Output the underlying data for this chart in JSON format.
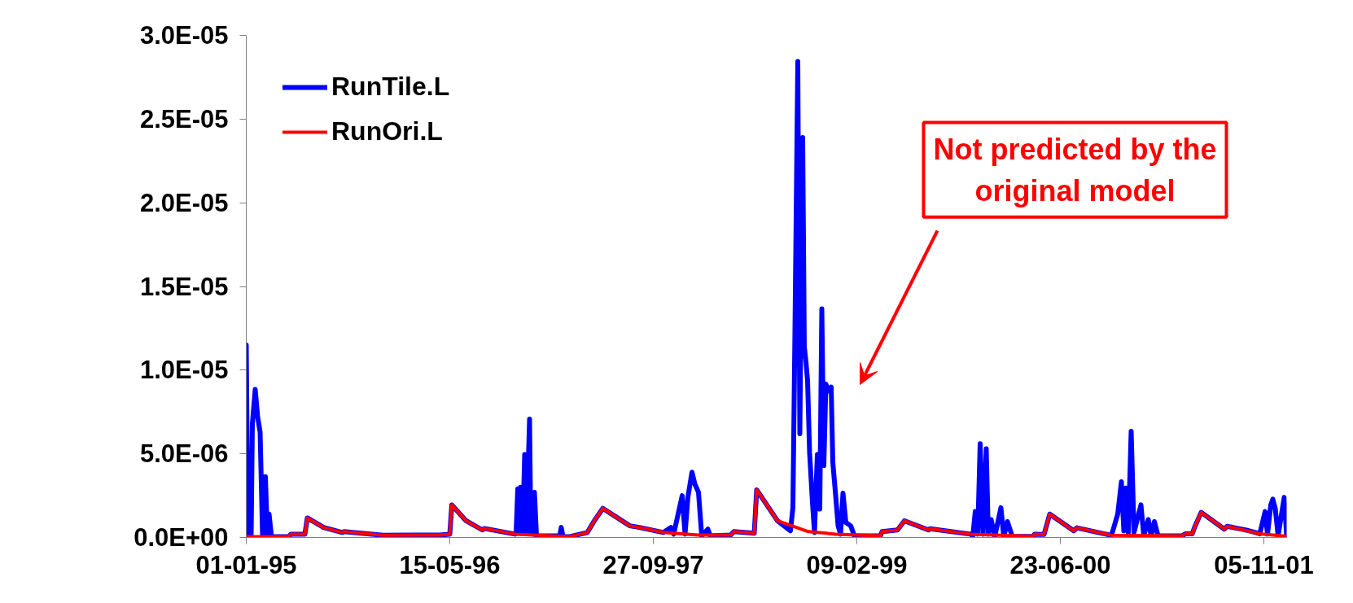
{
  "chart_data": {
    "type": "line",
    "xlim": [
      "1995-01-01",
      "2001-12-31"
    ],
    "xticks": [
      {
        "value": "1995-01-01",
        "label": "01-01-95"
      },
      {
        "value": "1996-05-15",
        "label": "15-05-96"
      },
      {
        "value": "1997-09-27",
        "label": "27-09-97"
      },
      {
        "value": "1999-02-09",
        "label": "09-02-99"
      },
      {
        "value": "2000-06-23",
        "label": "23-06-00"
      },
      {
        "value": "2001-11-05",
        "label": "05-11-01"
      }
    ],
    "ylim": [
      0,
      3e-05
    ],
    "yticks": [
      {
        "value": 0,
        "label": "0.0E+00"
      },
      {
        "value": 5e-06,
        "label": "5.0E-06"
      },
      {
        "value": 1e-05,
        "label": "1.0E-05"
      },
      {
        "value": 1.5e-05,
        "label": "1.5E-05"
      },
      {
        "value": 2e-05,
        "label": "2.0E-05"
      },
      {
        "value": 2.5e-05,
        "label": "2.5E-05"
      },
      {
        "value": 3e-05,
        "label": "3.0E-05"
      }
    ],
    "grid": false,
    "legend": "top left",
    "marker": "none",
    "line_style": "solid",
    "annotations": [
      "Not predicted by the original model"
    ],
    "series": [
      {
        "name": "RunTile.L",
        "color": "#0000ff",
        "x": [
          "1995-01-01",
          "1995-01-05",
          "1995-01-09",
          "1995-01-13",
          "1995-01-16",
          "1995-01-23",
          "1995-01-29",
          "1995-02-04",
          "1995-02-10",
          "1995-02-17",
          "1995-02-22",
          "1995-02-26",
          "1995-03-04",
          "1995-04-15",
          "1995-04-21",
          "1995-05-25",
          "1995-05-31",
          "1995-07-10",
          "1995-08-25",
          "1995-08-29",
          "1995-12-03",
          "1996-04-20",
          "1996-05-15",
          "1996-05-20",
          "1996-06-24",
          "1996-08-03",
          "1996-08-08",
          "1996-10-22",
          "1996-10-25",
          "1996-10-29",
          "1996-11-02",
          "1996-11-05",
          "1996-11-10",
          "1996-11-15",
          "1996-11-19",
          "1996-11-27",
          "1996-11-30",
          "1996-12-02",
          "1996-12-06",
          "1996-12-09",
          "1996-12-14",
          "1997-02-09",
          "1997-02-13",
          "1997-02-17",
          "1997-03-06",
          "1997-04-18",
          "1997-05-05",
          "1997-05-26",
          "1997-07-31",
          "1997-08-24",
          "1997-10-22",
          "1997-11-09",
          "1997-11-16",
          "1997-12-07",
          "1997-12-14",
          "1997-12-21",
          "1997-12-31",
          "1998-01-07",
          "1998-01-16",
          "1998-01-24",
          "1998-02-08",
          "1998-02-14",
          "1998-04-05",
          "1998-04-13",
          "1998-06-02",
          "1998-06-08",
          "1998-07-29",
          "1998-08-30",
          "1998-09-05",
          "1998-09-10",
          "1998-09-17",
          "1998-09-22",
          "1998-09-29",
          "1998-10-03",
          "1998-10-07",
          "1998-10-11",
          "1998-10-16",
          "1998-10-23",
          "1998-10-28",
          "1998-11-04",
          "1998-11-10",
          "1998-11-15",
          "1998-11-20",
          "1998-11-25",
          "1998-12-01",
          "1998-12-08",
          "1998-12-12",
          "1998-12-19",
          "1998-12-25",
          "1998-12-31",
          "1999-01-06",
          "1999-01-13",
          "1999-01-25",
          "1999-02-03",
          "1999-04-08",
          "1999-04-12",
          "1999-05-20",
          "1999-06-06",
          "1999-08-04",
          "1999-08-08",
          "1999-11-15",
          "1999-11-21",
          "1999-11-27",
          "1999-12-03",
          "1999-12-09",
          "1999-12-16",
          "1999-12-24",
          "1999-12-29",
          "2000-01-05",
          "2000-01-14",
          "2000-01-29",
          "2000-02-05",
          "2000-02-14",
          "2000-02-26",
          "2000-04-17",
          "2000-04-21",
          "2000-05-14",
          "2000-05-28",
          "2000-07-26",
          "2000-08-03",
          "2000-10-26",
          "2000-10-30",
          "2000-11-11",
          "2000-11-20",
          "2000-11-26",
          "2000-12-01",
          "2000-12-07",
          "2000-12-14",
          "2000-12-21",
          "2001-01-07",
          "2001-01-14",
          "2001-01-25",
          "2001-02-01",
          "2001-02-09",
          "2001-02-18",
          "2001-04-18",
          "2001-04-27",
          "2001-05-13",
          "2001-05-19",
          "2001-06-04",
          "2001-07-31",
          "2001-08-07",
          "2001-09-23",
          "2001-10-26",
          "2001-11-08",
          "2001-11-14",
          "2001-11-22",
          "2001-11-27",
          "2001-12-03",
          "2001-12-10",
          "2001-12-25",
          "2001-12-31"
        ],
        "values": [
          1.15e-05,
          1e-07,
          4.45e-06,
          1e-07,
          6.8e-06,
          8.85e-06,
          7.2e-06,
          6.3e-06,
          1e-07,
          3.63e-06,
          1e-07,
          1.4e-06,
          5e-08,
          5e-08,
          2e-07,
          2e-07,
          1.17e-06,
          6e-07,
          3e-07,
          3.5e-07,
          1.3e-07,
          1.5e-07,
          2e-07,
          1.94e-06,
          1e-06,
          4.5e-07,
          5.4e-07,
          2e-07,
          3e-07,
          2.9e-06,
          3e-07,
          3e-06,
          3e-07,
          4.96e-06,
          3e-07,
          7.07e-06,
          3e-07,
          2.6e-06,
          2e-07,
          2.7e-06,
          1e-07,
          1e-07,
          6e-07,
          5e-08,
          5e-08,
          3e-07,
          1e-06,
          1.74e-06,
          7e-07,
          6e-07,
          3e-07,
          6e-07,
          2e-07,
          2.5e-06,
          2e-07,
          2.4e-06,
          3.9e-06,
          3.2e-06,
          2.7e-06,
          1e-07,
          5e-07,
          1e-07,
          1.5e-07,
          3.5e-07,
          2.5e-07,
          2.85e-06,
          1e-06,
          4e-07,
          1.8e-06,
          1.233e-05,
          2.845e-05,
          6.2e-06,
          2.39e-05,
          1.141e-05,
          1.05e-05,
          9.37e-06,
          5.06e-06,
          2.1e-06,
          3e-07,
          4.96e-06,
          1.7e-06,
          1.366e-05,
          4.3e-06,
          9.16e-06,
          8.75e-06,
          8.99e-06,
          4.5e-06,
          2.5e-06,
          7e-07,
          2e-07,
          2.65e-06,
          9e-07,
          7e-07,
          1e-07,
          1e-07,
          3.5e-07,
          4.5e-07,
          1e-06,
          4.5e-07,
          5.2e-07,
          2e-07,
          1e-07,
          1.55e-06,
          2e-07,
          5.6e-06,
          2e-07,
          5.3e-06,
          2e-07,
          1.07e-06,
          5e-08,
          1.78e-06,
          5e-08,
          9.5e-07,
          5e-08,
          7e-08,
          2e-07,
          1.8e-07,
          1.4e-06,
          4e-07,
          5.8e-07,
          1.3e-07,
          4e-07,
          1.4e-06,
          3.33e-06,
          4e-07,
          2.95e-06,
          3e-07,
          6.35e-06,
          3e-07,
          1.95e-06,
          1e-07,
          1.07e-06,
          1e-07,
          9.5e-07,
          1e-07,
          1e-07,
          2.2e-07,
          2.2e-07,
          6.2e-07,
          1.5e-06,
          5e-07,
          6.7e-07,
          4.4e-07,
          2.2e-07,
          1.55e-06,
          2e-07,
          1.95e-06,
          2.29e-06,
          1.73e-06,
          1e-07,
          2.4e-06,
          7e-08
        ]
      },
      {
        "name": "RunOri.L",
        "color": "#ff0000",
        "x": [
          "1995-01-01",
          "1995-04-15",
          "1995-04-21",
          "1995-05-25",
          "1995-05-31",
          "1995-07-10",
          "1995-08-25",
          "1995-08-29",
          "1995-12-03",
          "1996-04-20",
          "1996-05-15",
          "1996-05-20",
          "1996-06-24",
          "1996-08-03",
          "1996-08-08",
          "1996-10-22",
          "1997-03-06",
          "1997-04-18",
          "1997-05-05",
          "1997-05-26",
          "1997-07-31",
          "1997-08-24",
          "1997-10-22",
          "1998-01-15",
          "1998-04-05",
          "1998-04-13",
          "1998-06-02",
          "1998-06-08",
          "1998-07-29",
          "1998-10-13",
          "1998-12-19",
          "1999-04-08",
          "1999-04-12",
          "1999-05-20",
          "1999-06-06",
          "1999-08-04",
          "1999-08-08",
          "1999-11-15",
          "2000-04-17",
          "2000-04-21",
          "2000-05-14",
          "2000-05-28",
          "2000-07-26",
          "2000-08-03",
          "2000-10-26",
          "2001-04-18",
          "2001-04-27",
          "2001-05-13",
          "2001-05-19",
          "2001-06-04",
          "2001-07-31",
          "2001-08-07",
          "2001-10-26",
          "2001-12-31"
        ],
        "values": [
          5e-08,
          5e-08,
          2e-07,
          2e-07,
          1.17e-06,
          6e-07,
          3e-07,
          3.5e-07,
          1.3e-07,
          1.5e-07,
          2e-07,
          1.94e-06,
          1e-06,
          4.5e-07,
          5.4e-07,
          2e-07,
          5e-08,
          3e-07,
          1e-06,
          1.74e-06,
          7e-07,
          6e-07,
          3e-07,
          1.5e-07,
          1.5e-07,
          3.5e-07,
          2.5e-07,
          2.85e-06,
          1e-06,
          3.5e-07,
          2e-07,
          1e-07,
          3.5e-07,
          4.5e-07,
          1e-06,
          4.5e-07,
          5.2e-07,
          2e-07,
          7e-08,
          2e-07,
          1.8e-07,
          1.4e-06,
          4e-07,
          5.8e-07,
          1.3e-07,
          1e-07,
          2.2e-07,
          2.2e-07,
          6.2e-07,
          1.5e-06,
          5e-07,
          6.7e-07,
          2.2e-07,
          7e-08
        ]
      }
    ]
  }
}
